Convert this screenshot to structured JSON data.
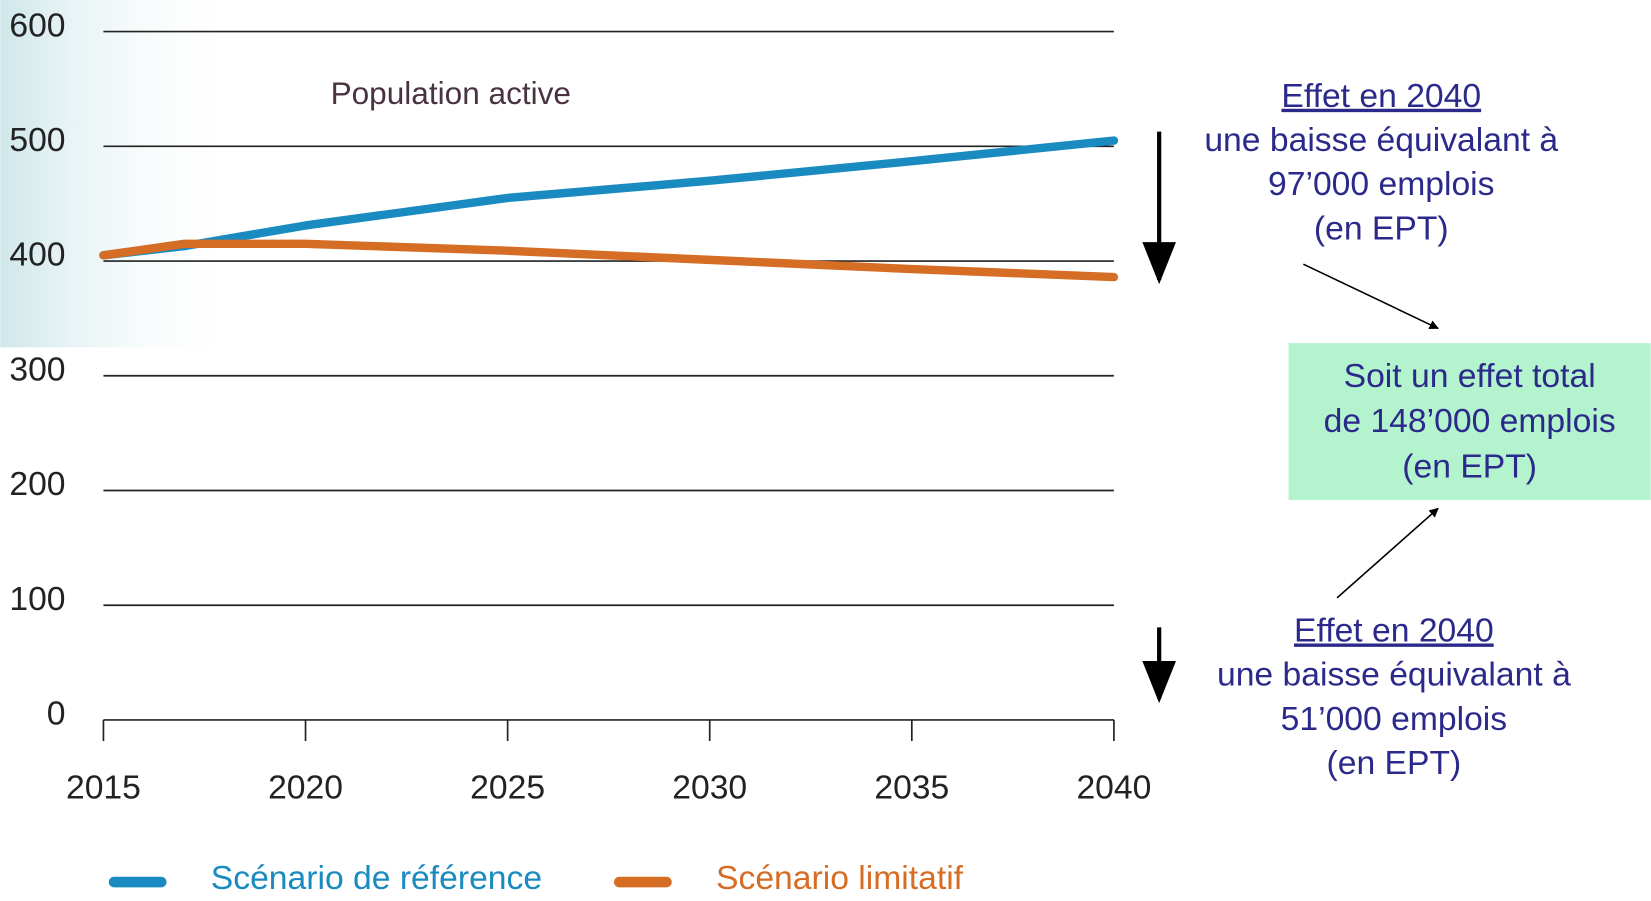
{
  "chart_data": {
    "type": "line",
    "label": "Population active",
    "x": [
      2015,
      2017,
      2020,
      2025,
      2030,
      2035,
      2040
    ],
    "series": [
      {
        "name": "Scénario de référence",
        "color": "#1a8bc0",
        "values": [
          405,
          413,
          431,
          455,
          470,
          487,
          505
        ]
      },
      {
        "name": "Scénario limitatif",
        "color": "#d56d24",
        "values": [
          405,
          415,
          415,
          409,
          401,
          393,
          386
        ]
      }
    ],
    "xlim": [
      2015,
      2040
    ],
    "xticks": [
      2015,
      2020,
      2025,
      2030,
      2035,
      2040
    ],
    "ylim": [
      0,
      600
    ],
    "yticks": [
      0,
      100,
      200,
      300,
      400,
      500,
      600
    ],
    "grid": true,
    "annotations": [
      {
        "heading": "Effet en 2040",
        "lines": [
          "une baisse équivalant à",
          "97’000 emplois",
          "(en EPT)"
        ]
      },
      {
        "heading": "Effet en 2040",
        "lines": [
          "une baisse équivalant à",
          "51’000 emplois",
          "(en EPT)"
        ]
      }
    ],
    "total_box": {
      "lines": [
        "Soit un effet total",
        "de 148’000 emplois",
        "(en EPT)"
      ]
    }
  }
}
